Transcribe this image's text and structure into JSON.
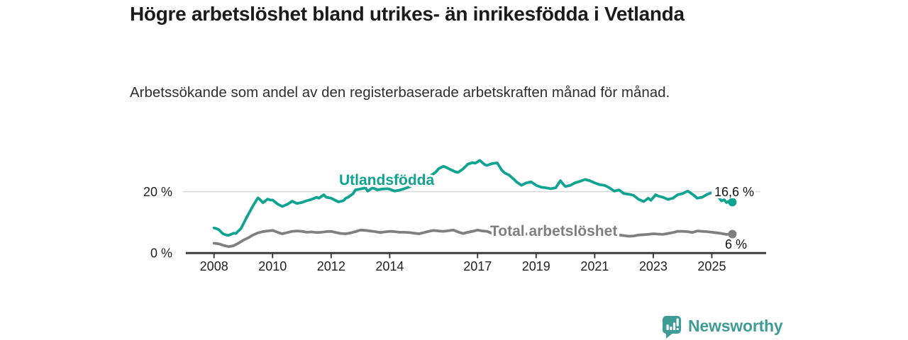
{
  "title": "Högre arbetslöshet bland utrikes- än inrikesfödda i Vetlanda",
  "subtitle": "Arbetssökande som andel av den registerbaserade arbetskraften månad för månad.",
  "branding": {
    "logo_text": "Newsworthy",
    "logo_icon": "newsworthy-speech-bubble-bar-chart-icon",
    "brand_color": "#3e9c96"
  },
  "colors": {
    "foreign_born_line": "#0fa392",
    "total_line": "#7f7f7f",
    "axis": "#3d3d3d",
    "gridline": "#d9d9d9",
    "text": "#1b1b1b"
  },
  "chart_data": {
    "type": "line",
    "title": "Högre arbetslöshet bland utrikes- än inrikesfödda i Vetlanda",
    "subtitle": "Arbetssökande som andel av den registerbaserade arbetskraften månad för månad.",
    "unit": "%",
    "grid": "horizontal, only at 20 %",
    "legend_position": "inline labels on lines",
    "x_axis": {
      "ticks": [
        2008,
        2010,
        2012,
        2014,
        2017,
        2019,
        2021,
        2023,
        2025
      ],
      "tick_labels": [
        "2008",
        "2010",
        "2012",
        "2014",
        "2017",
        "2019",
        "2021",
        "2023",
        "2025"
      ],
      "range": [
        2007.1,
        2026.9
      ]
    },
    "y_axis": {
      "tick_values": [
        0,
        20
      ],
      "tick_labels": [
        "0 %",
        "20 %"
      ],
      "ylim": [
        0,
        33
      ]
    },
    "series": [
      {
        "name": "Utlandsfödda",
        "color": "#0fa392",
        "end_label": "16,6 %",
        "end_value": 16.6,
        "points": [
          [
            2008.0,
            8.2
          ],
          [
            2008.08,
            8.0
          ],
          [
            2008.17,
            7.6
          ],
          [
            2008.25,
            6.8
          ],
          [
            2008.33,
            6.2
          ],
          [
            2008.42,
            5.9
          ],
          [
            2008.5,
            5.8
          ],
          [
            2008.58,
            6.1
          ],
          [
            2008.67,
            6.5
          ],
          [
            2008.75,
            6.4
          ],
          [
            2008.83,
            7.2
          ],
          [
            2008.92,
            8.0
          ],
          [
            2009.0,
            9.5
          ],
          [
            2009.08,
            11.0
          ],
          [
            2009.17,
            12.6
          ],
          [
            2009.25,
            14.0
          ],
          [
            2009.33,
            15.4
          ],
          [
            2009.42,
            16.8
          ],
          [
            2009.5,
            18.0
          ],
          [
            2009.58,
            17.4
          ],
          [
            2009.67,
            16.4
          ],
          [
            2009.75,
            17.0
          ],
          [
            2009.83,
            17.6
          ],
          [
            2009.92,
            17.3
          ],
          [
            2010.0,
            17.3
          ],
          [
            2010.17,
            16.0
          ],
          [
            2010.33,
            15.2
          ],
          [
            2010.5,
            15.9
          ],
          [
            2010.67,
            16.9
          ],
          [
            2010.83,
            16.2
          ],
          [
            2011.0,
            16.5
          ],
          [
            2011.17,
            17.1
          ],
          [
            2011.33,
            17.5
          ],
          [
            2011.5,
            18.2
          ],
          [
            2011.58,
            17.9
          ],
          [
            2011.75,
            19.0
          ],
          [
            2011.83,
            18.2
          ],
          [
            2012.0,
            17.9
          ],
          [
            2012.08,
            17.5
          ],
          [
            2012.25,
            16.7
          ],
          [
            2012.42,
            17.1
          ],
          [
            2012.5,
            17.9
          ],
          [
            2012.58,
            18.2
          ],
          [
            2012.75,
            19.4
          ],
          [
            2012.83,
            20.6
          ],
          [
            2013.0,
            20.9
          ],
          [
            2013.17,
            21.3
          ],
          [
            2013.25,
            20.2
          ],
          [
            2013.42,
            21.3
          ],
          [
            2013.58,
            20.6
          ],
          [
            2013.75,
            20.9
          ],
          [
            2013.92,
            21.0
          ],
          [
            2014.0,
            20.8
          ],
          [
            2014.17,
            20.2
          ],
          [
            2014.33,
            20.5
          ],
          [
            2014.5,
            21.0
          ],
          [
            2014.67,
            21.6
          ],
          [
            2014.83,
            22.3
          ],
          [
            2015.0,
            23.1
          ],
          [
            2015.17,
            23.9
          ],
          [
            2015.33,
            24.9
          ],
          [
            2015.5,
            25.9
          ],
          [
            2015.58,
            26.5
          ],
          [
            2015.67,
            27.5
          ],
          [
            2015.83,
            28.3
          ],
          [
            2015.92,
            28.0
          ],
          [
            2016.08,
            27.2
          ],
          [
            2016.25,
            26.5
          ],
          [
            2016.33,
            26.3
          ],
          [
            2016.5,
            27.4
          ],
          [
            2016.67,
            29.0
          ],
          [
            2016.83,
            29.5
          ],
          [
            2016.92,
            29.3
          ],
          [
            2017.08,
            30.2
          ],
          [
            2017.25,
            28.8
          ],
          [
            2017.33,
            28.6
          ],
          [
            2017.5,
            29.2
          ],
          [
            2017.67,
            29.4
          ],
          [
            2017.83,
            27.0
          ],
          [
            2017.92,
            26.2
          ],
          [
            2018.08,
            25.4
          ],
          [
            2018.25,
            24.0
          ],
          [
            2018.33,
            23.2
          ],
          [
            2018.5,
            22.1
          ],
          [
            2018.67,
            22.9
          ],
          [
            2018.83,
            23.2
          ],
          [
            2019.0,
            22.1
          ],
          [
            2019.17,
            21.5
          ],
          [
            2019.33,
            21.3
          ],
          [
            2019.5,
            21.0
          ],
          [
            2019.67,
            21.3
          ],
          [
            2019.83,
            23.6
          ],
          [
            2019.92,
            22.5
          ],
          [
            2020.0,
            21.7
          ],
          [
            2020.17,
            22.1
          ],
          [
            2020.33,
            22.9
          ],
          [
            2020.5,
            23.4
          ],
          [
            2020.67,
            24.0
          ],
          [
            2020.83,
            23.6
          ],
          [
            2021.0,
            22.9
          ],
          [
            2021.17,
            22.3
          ],
          [
            2021.33,
            22.1
          ],
          [
            2021.5,
            21.3
          ],
          [
            2021.67,
            20.2
          ],
          [
            2021.83,
            20.6
          ],
          [
            2022.0,
            19.4
          ],
          [
            2022.17,
            19.2
          ],
          [
            2022.33,
            18.8
          ],
          [
            2022.5,
            17.5
          ],
          [
            2022.58,
            17.2
          ],
          [
            2022.67,
            16.8
          ],
          [
            2022.83,
            17.9
          ],
          [
            2022.92,
            17.2
          ],
          [
            2023.08,
            19.0
          ],
          [
            2023.17,
            18.6
          ],
          [
            2023.33,
            18.2
          ],
          [
            2023.5,
            17.5
          ],
          [
            2023.67,
            17.9
          ],
          [
            2023.83,
            19.0
          ],
          [
            2024.0,
            19.4
          ],
          [
            2024.17,
            20.2
          ],
          [
            2024.25,
            19.8
          ],
          [
            2024.42,
            18.6
          ],
          [
            2024.5,
            17.9
          ],
          [
            2024.67,
            18.2
          ],
          [
            2024.83,
            19.1
          ],
          [
            2025.0,
            19.7
          ],
          [
            2025.08,
            19.4
          ],
          [
            2025.25,
            18.0
          ],
          [
            2025.33,
            17.0
          ],
          [
            2025.42,
            17.4
          ],
          [
            2025.5,
            16.5
          ],
          [
            2025.58,
            16.9
          ],
          [
            2025.7,
            16.6
          ]
        ]
      },
      {
        "name": "Total arbetslöshet",
        "color": "#7f7f7f",
        "end_label": "6 %",
        "end_value": 6,
        "points": [
          [
            2008.0,
            3.2
          ],
          [
            2008.17,
            3.0
          ],
          [
            2008.33,
            2.5
          ],
          [
            2008.5,
            2.1
          ],
          [
            2008.67,
            2.4
          ],
          [
            2008.83,
            3.2
          ],
          [
            2009.0,
            4.2
          ],
          [
            2009.17,
            5.0
          ],
          [
            2009.33,
            5.9
          ],
          [
            2009.5,
            6.6
          ],
          [
            2009.67,
            7.0
          ],
          [
            2009.83,
            7.2
          ],
          [
            2010.0,
            7.4
          ],
          [
            2010.17,
            6.8
          ],
          [
            2010.33,
            6.3
          ],
          [
            2010.5,
            6.7
          ],
          [
            2010.67,
            7.1
          ],
          [
            2010.83,
            7.2
          ],
          [
            2011.0,
            7.1
          ],
          [
            2011.17,
            6.8
          ],
          [
            2011.33,
            6.9
          ],
          [
            2011.5,
            6.7
          ],
          [
            2011.67,
            6.8
          ],
          [
            2011.83,
            7.0
          ],
          [
            2012.0,
            7.1
          ],
          [
            2012.17,
            6.7
          ],
          [
            2012.33,
            6.4
          ],
          [
            2012.5,
            6.3
          ],
          [
            2012.67,
            6.6
          ],
          [
            2012.83,
            7.0
          ],
          [
            2013.0,
            7.5
          ],
          [
            2013.17,
            7.4
          ],
          [
            2013.33,
            7.2
          ],
          [
            2013.5,
            7.0
          ],
          [
            2013.67,
            6.7
          ],
          [
            2013.83,
            6.9
          ],
          [
            2014.0,
            7.1
          ],
          [
            2014.17,
            7.0
          ],
          [
            2014.33,
            6.8
          ],
          [
            2014.5,
            6.8
          ],
          [
            2014.67,
            6.7
          ],
          [
            2014.83,
            6.5
          ],
          [
            2015.0,
            6.3
          ],
          [
            2015.17,
            6.7
          ],
          [
            2015.33,
            7.1
          ],
          [
            2015.5,
            7.4
          ],
          [
            2015.67,
            7.2
          ],
          [
            2015.83,
            7.1
          ],
          [
            2016.0,
            7.3
          ],
          [
            2016.17,
            7.5
          ],
          [
            2016.33,
            6.9
          ],
          [
            2016.5,
            6.4
          ],
          [
            2016.67,
            6.8
          ],
          [
            2016.83,
            7.1
          ],
          [
            2017.0,
            7.5
          ],
          [
            2017.17,
            7.2
          ],
          [
            2017.33,
            7.1
          ],
          [
            2017.5,
            6.4
          ],
          [
            2017.67,
            6.6
          ],
          [
            2017.83,
            6.5
          ],
          [
            2018.0,
            6.4
          ],
          [
            2018.25,
            6.2
          ],
          [
            2018.5,
            6.1
          ],
          [
            2018.75,
            6.3
          ],
          [
            2019.0,
            6.4
          ],
          [
            2019.25,
            6.2
          ],
          [
            2019.5,
            6.3
          ],
          [
            2019.75,
            6.6
          ],
          [
            2020.0,
            7.0
          ],
          [
            2020.25,
            7.6
          ],
          [
            2020.5,
            7.8
          ],
          [
            2020.75,
            7.5
          ],
          [
            2021.0,
            7.2
          ],
          [
            2021.25,
            6.8
          ],
          [
            2021.5,
            6.4
          ],
          [
            2021.67,
            6.1
          ],
          [
            2021.83,
            5.9
          ],
          [
            2022.0,
            5.7
          ],
          [
            2022.17,
            5.5
          ],
          [
            2022.33,
            5.6
          ],
          [
            2022.5,
            5.9
          ],
          [
            2022.67,
            6.0
          ],
          [
            2022.83,
            6.1
          ],
          [
            2023.0,
            6.3
          ],
          [
            2023.17,
            6.2
          ],
          [
            2023.33,
            6.1
          ],
          [
            2023.5,
            6.4
          ],
          [
            2023.67,
            6.7
          ],
          [
            2023.83,
            7.1
          ],
          [
            2024.0,
            7.1
          ],
          [
            2024.17,
            7.0
          ],
          [
            2024.33,
            6.7
          ],
          [
            2024.5,
            7.2
          ],
          [
            2024.67,
            7.1
          ],
          [
            2024.83,
            7.0
          ],
          [
            2025.0,
            6.8
          ],
          [
            2025.17,
            6.6
          ],
          [
            2025.33,
            6.4
          ],
          [
            2025.5,
            6.1
          ],
          [
            2025.7,
            6.2
          ]
        ]
      }
    ]
  }
}
